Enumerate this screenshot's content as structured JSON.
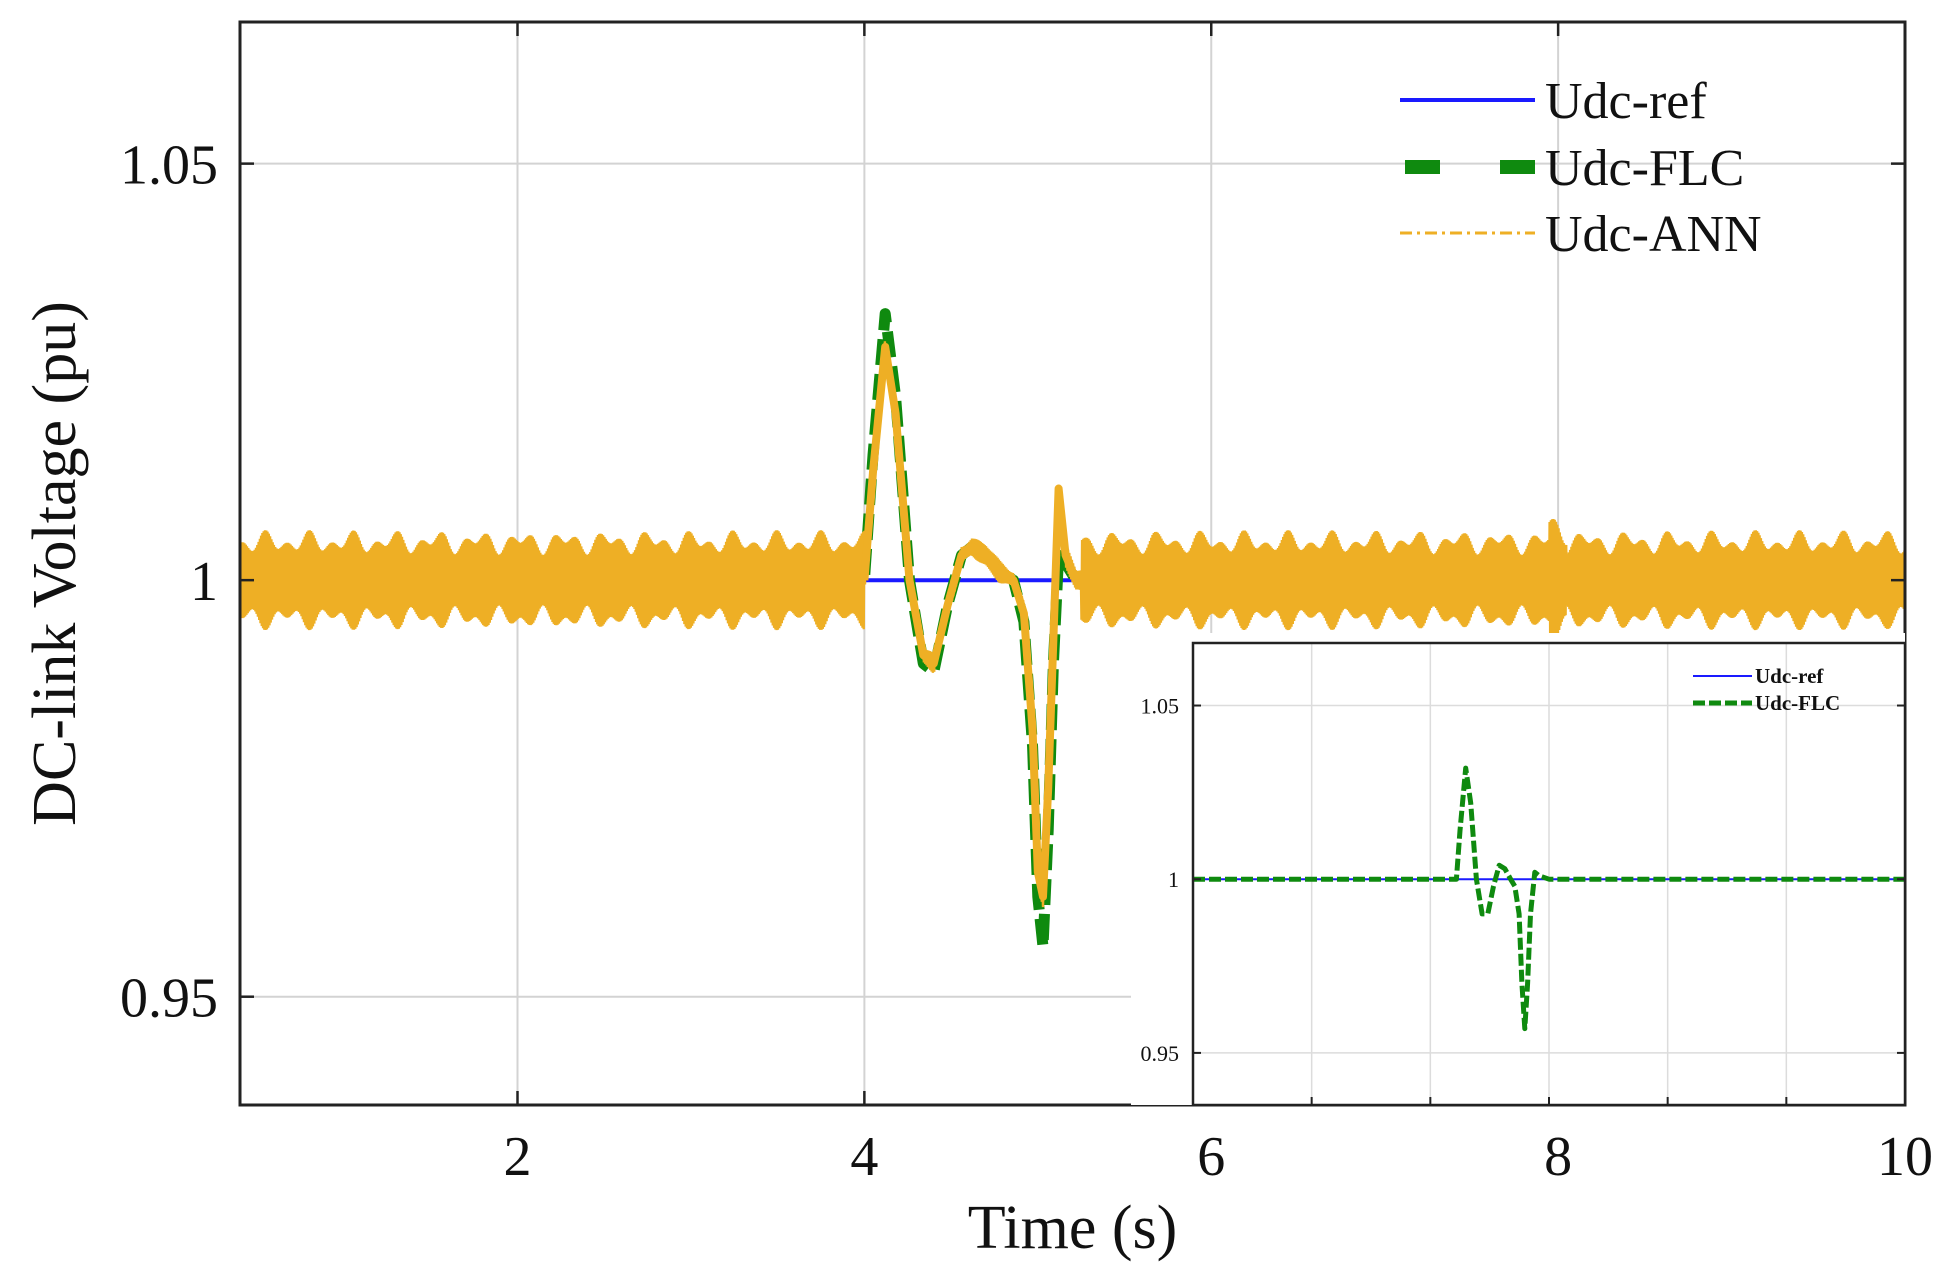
{
  "chart_data": [
    {
      "type": "line",
      "panel": "main",
      "xlabel": "Time (s)",
      "ylabel": "DC-link Voltage (pu)",
      "xlim": [
        0.4,
        10
      ],
      "ylim": [
        0.937,
        1.067
      ],
      "xticks": [
        2,
        4,
        6,
        8,
        10
      ],
      "xtick_labels": [
        "2",
        "4",
        "6",
        "8",
        "10"
      ],
      "yticks": [
        0.95,
        1.0,
        1.05
      ],
      "ytick_labels": [
        "0.95",
        "1",
        "1.05"
      ],
      "grid": true,
      "legend_position": "top-right",
      "colors": {
        "ref": "#1a1aff",
        "flc": "#0f8a0f",
        "ann": "#eeaf25"
      },
      "series": [
        {
          "name": "Udc-ref",
          "style": "solid",
          "x": [
            0.4,
            10
          ],
          "y": [
            1.0,
            1.0
          ]
        },
        {
          "name": "Udc-FLC",
          "style": "dashed",
          "x": [
            0.4,
            4.0,
            4.05,
            4.12,
            4.18,
            4.26,
            4.34,
            4.4,
            4.48,
            4.56,
            4.62,
            4.7,
            4.78,
            4.86,
            4.92,
            4.97,
            5.0,
            5.03,
            5.06,
            5.09,
            5.12,
            5.16,
            5.22,
            10.0
          ],
          "y": [
            1.0,
            1.0,
            1.015,
            1.032,
            1.022,
            1.0,
            0.99,
            0.989,
            0.997,
            1.003,
            1.004,
            1.003,
            1.001,
            1.0,
            0.995,
            0.98,
            0.962,
            0.956,
            0.97,
            0.99,
            1.003,
            1.002,
            1.0,
            1.0
          ]
        },
        {
          "name": "Udc-ANN",
          "style": "dash-dot",
          "x": [
            0.4,
            4.0,
            4.05,
            4.12,
            4.18,
            4.26,
            4.34,
            4.4,
            4.48,
            4.56,
            4.62,
            4.7,
            4.78,
            4.86,
            4.92,
            4.97,
            5.0,
            5.03,
            5.06,
            5.09,
            5.12,
            5.16,
            5.22,
            10.0
          ],
          "y": [
            1.0,
            1.0,
            1.013,
            1.028,
            1.02,
            1.0,
            0.991,
            0.99,
            0.997,
            1.003,
            1.004,
            1.003,
            1.001,
            1.0,
            0.996,
            0.982,
            0.965,
            0.962,
            0.975,
            0.993,
            1.011,
            1.003,
            1.0,
            1.0
          ],
          "ripple_amplitude_pu": 0.006
        }
      ]
    },
    {
      "type": "line",
      "panel": "inset",
      "xlim": [
        0,
        10
      ],
      "ylim": [
        0.935,
        1.068
      ],
      "yticks": [
        0.95,
        1.0,
        1.05
      ],
      "ytick_labels": [
        "0.95",
        "1",
        "1.05"
      ],
      "grid": true,
      "legend_position": "top-right",
      "series": [
        {
          "name": "Udc-ref",
          "style": "solid",
          "x": [
            0,
            10
          ],
          "y": [
            1.0,
            1.0
          ]
        },
        {
          "name": "Udc-FLC",
          "style": "dashed",
          "x": [
            0,
            3.7,
            3.75,
            3.83,
            3.9,
            3.98,
            4.06,
            4.14,
            4.22,
            4.3,
            4.38,
            4.46,
            4.52,
            4.58,
            4.62,
            4.66,
            4.7,
            4.74,
            4.8,
            4.86,
            5.0,
            10.0
          ],
          "y": [
            1.0,
            1.0,
            1.014,
            1.032,
            1.022,
            1.0,
            0.99,
            0.99,
            0.998,
            1.004,
            1.003,
            1.0,
            0.998,
            0.99,
            0.97,
            0.957,
            0.97,
            0.99,
            1.002,
            1.001,
            1.0,
            1.0
          ]
        }
      ]
    }
  ]
}
